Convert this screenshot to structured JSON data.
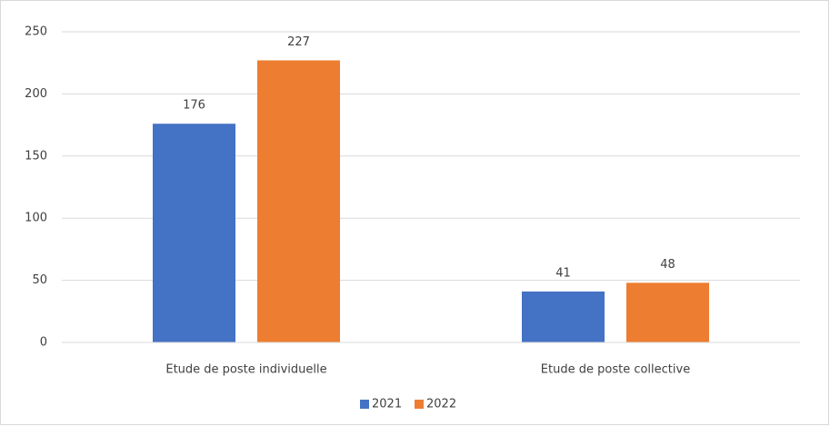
{
  "chart_data": {
    "type": "bar",
    "categories": [
      "Etude de poste individuelle",
      "Etude de poste collective"
    ],
    "series": [
      {
        "name": "2021",
        "color": "#4472c4",
        "values": [
          176,
          41
        ]
      },
      {
        "name": "2022",
        "color": "#ed7d31",
        "values": [
          227,
          48
        ]
      }
    ],
    "ylim": [
      0,
      250
    ],
    "yticks": [
      0,
      50,
      100,
      150,
      200,
      250
    ],
    "grid": true,
    "legend": "bottom"
  }
}
